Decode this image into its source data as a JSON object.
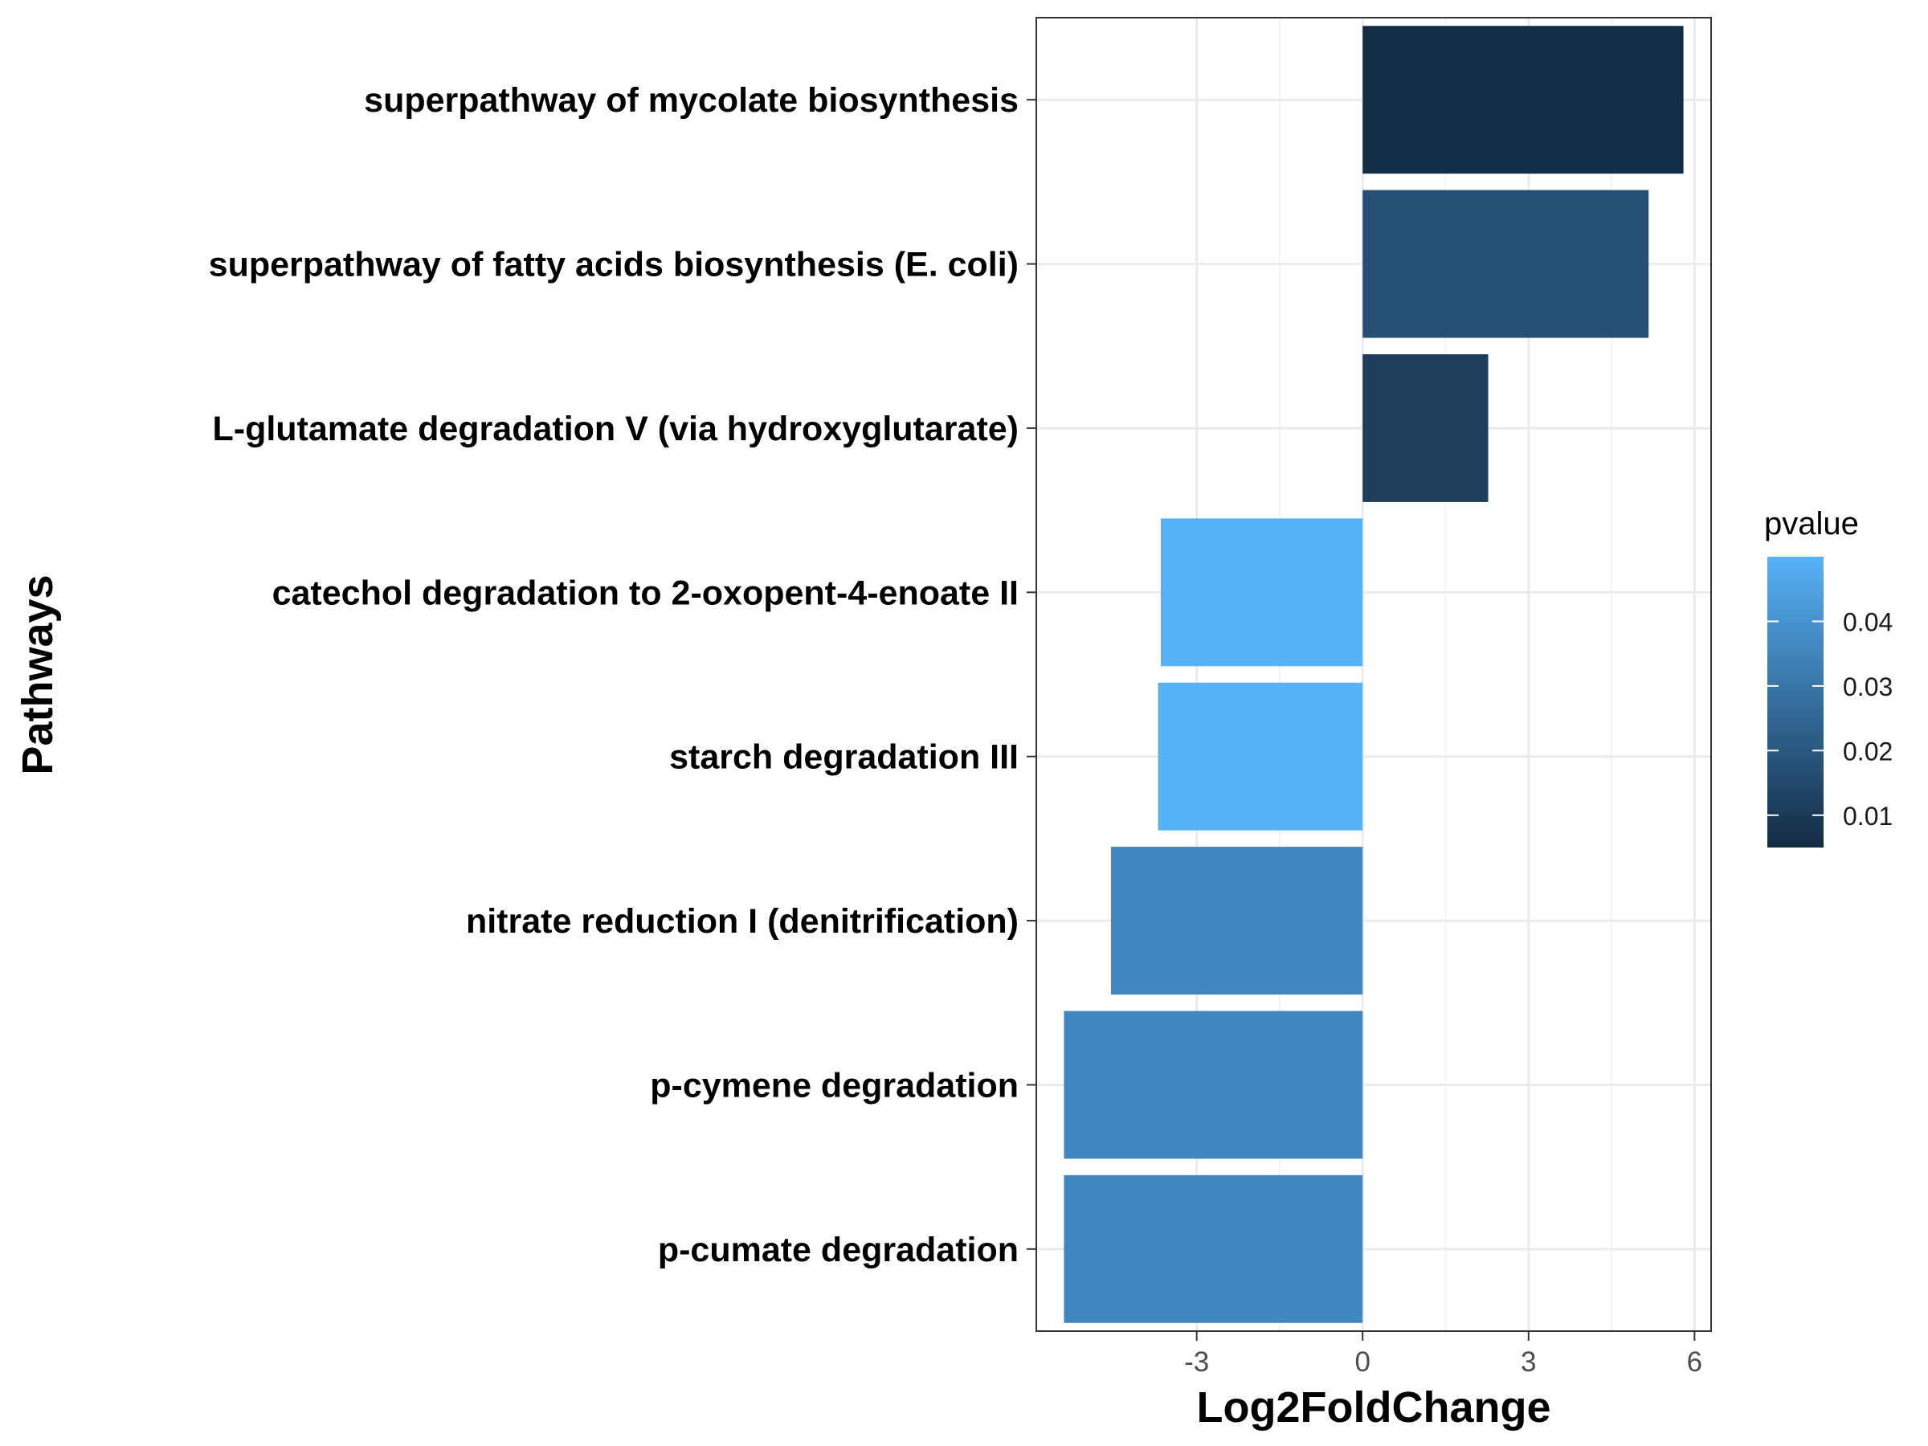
{
  "chart_data": {
    "type": "bar",
    "orientation": "horizontal",
    "xlabel": "Log2FoldChange",
    "ylabel": "Pathways",
    "xlim": [
      -5.9,
      6.3
    ],
    "x_ticks": [
      -3,
      0,
      3,
      6
    ],
    "x_tick_labels": [
      "-3",
      "0",
      "3",
      "6"
    ],
    "grid": true,
    "categories": [
      "superpathway of mycolate biosynthesis",
      "superpathway of fatty acids biosynthesis (E. coli)",
      "L-glutamate degradation V (via hydroxyglutarate)",
      "catechol degradation to 2-oxopent-4-enoate II",
      "starch degradation III",
      "nitrate reduction I (denitrification)",
      "p-cymene degradation",
      "p-cumate degradation"
    ],
    "values": [
      5.8,
      5.17,
      2.27,
      -3.65,
      -3.7,
      -4.55,
      -5.4,
      -5.4
    ],
    "pvalues": [
      0.006,
      0.017,
      0.011,
      0.05,
      0.05,
      0.036,
      0.036,
      0.036
    ],
    "legend": {
      "title": "pvalue",
      "placement": "right",
      "range": [
        0.005,
        0.05
      ],
      "breaks": [
        0.04,
        0.03,
        0.02,
        0.01
      ],
      "break_labels": [
        "0.04",
        "0.03",
        "0.02",
        "0.01"
      ],
      "low_color": "#132B43",
      "high_color": "#56B1F7"
    }
  }
}
